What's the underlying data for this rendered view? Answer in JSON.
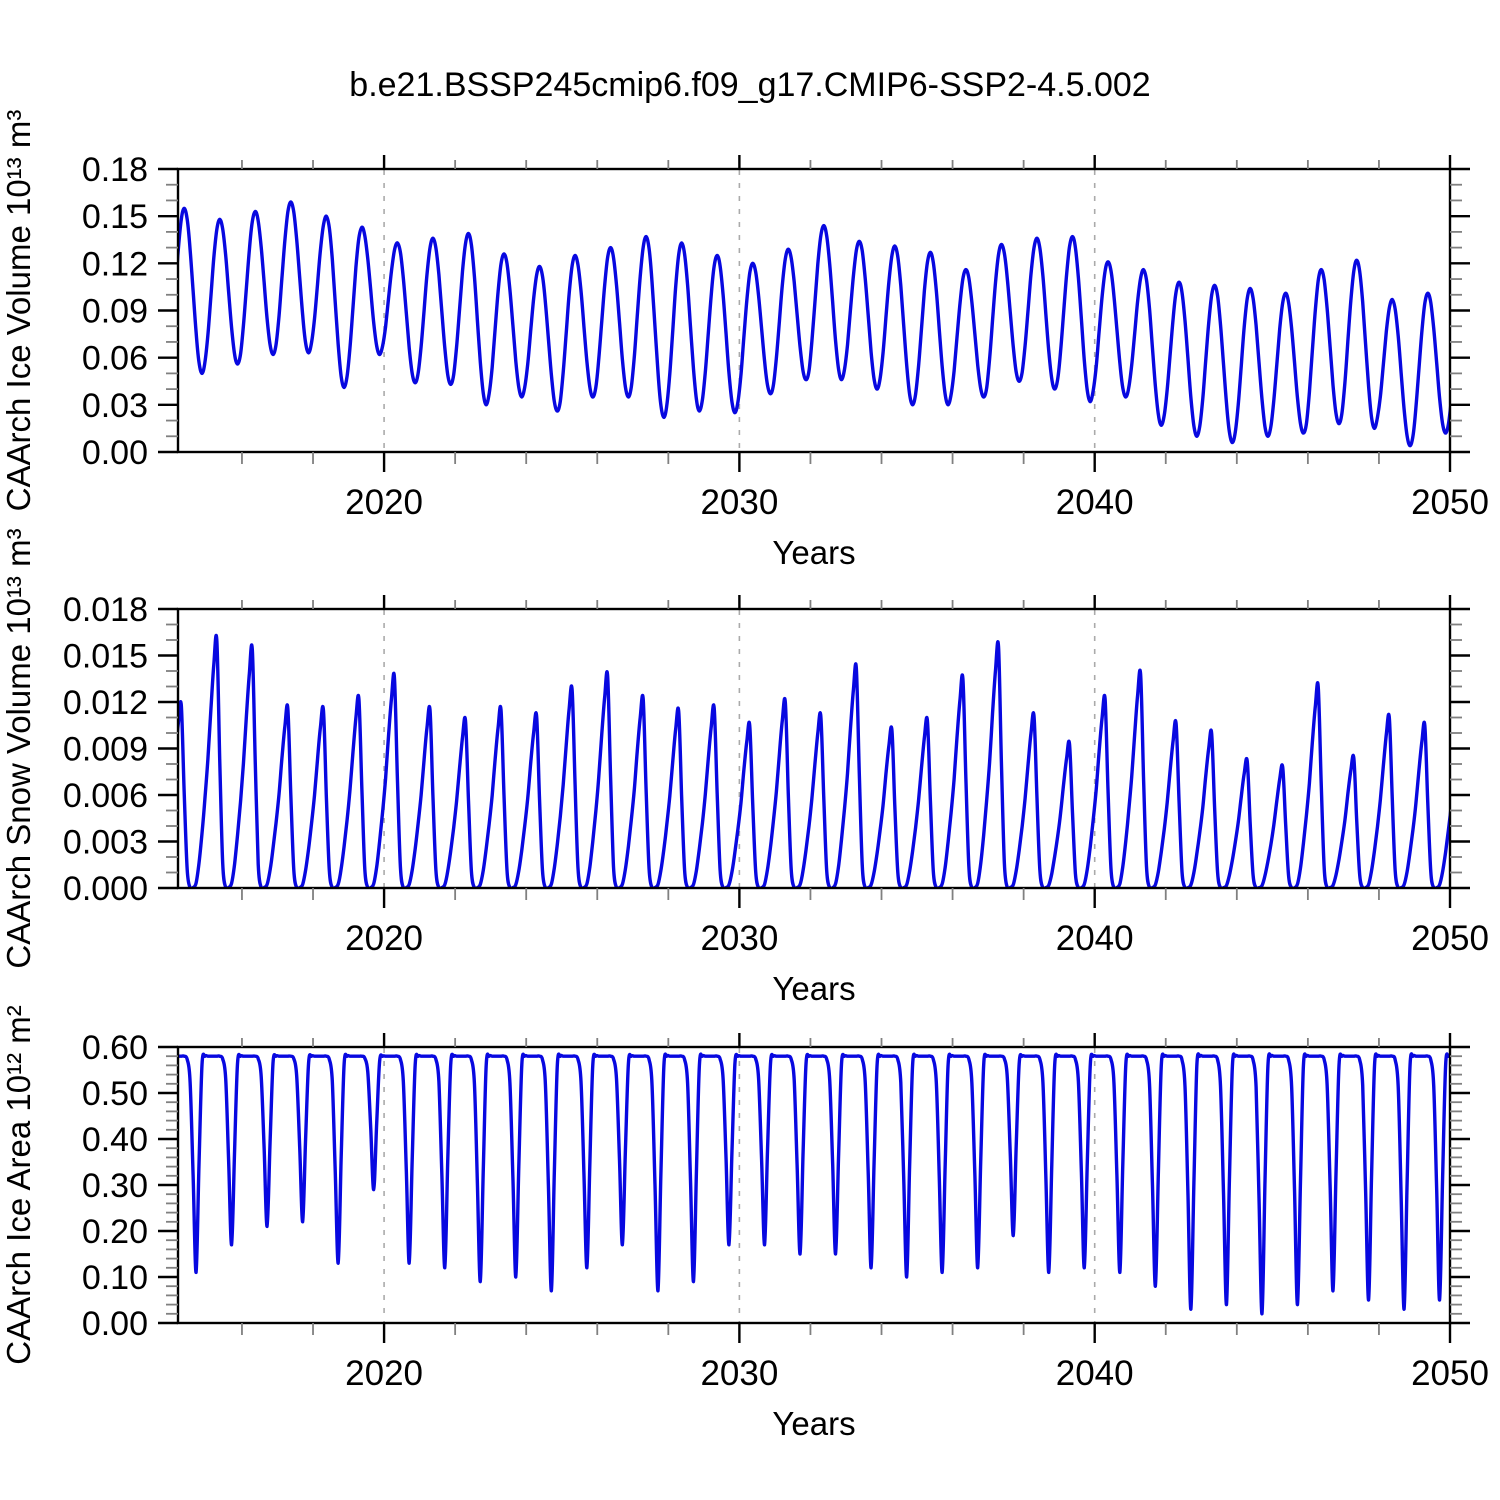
{
  "title": "b.e21.BSSP245cmip6.f09_g17.CMIP6-SSP2-4.5.002",
  "style": {
    "line_color": "#0808e0",
    "axis_color": "#000000",
    "minor_tick_color": "#808080",
    "grid_color": "#aaaaaa",
    "background": "#ffffff"
  },
  "chart_data": [
    {
      "type": "line",
      "id": "caarch-ice-volume",
      "ylabel": "CAArch Ice Volume 10¹³ m³",
      "xlabel": "Years",
      "ylim": [
        0,
        0.18
      ],
      "ytick_step": 0.03,
      "yminor_step": 0.01,
      "ydecimals": 2,
      "xlim": [
        2014.2,
        2050
      ],
      "xtick_labels": [
        2020,
        2030,
        2040,
        2050
      ],
      "xminor_step": 2,
      "gridlines": [
        2020,
        2030,
        2040
      ],
      "grid": "vertical-dashed",
      "legend": "none",
      "shape": "ice_volume",
      "note": "monthly seasonal cycle; annual spring maxima and autumn minima read from plot",
      "years": [
        2014,
        2015,
        2016,
        2017,
        2018,
        2019,
        2020,
        2021,
        2022,
        2023,
        2024,
        2025,
        2026,
        2027,
        2028,
        2029,
        2030,
        2031,
        2032,
        2033,
        2034,
        2035,
        2036,
        2037,
        2038,
        2039,
        2040,
        2041,
        2042,
        2043,
        2044,
        2045,
        2046,
        2047,
        2048,
        2049
      ],
      "annual_max": [
        0.155,
        0.148,
        0.153,
        0.159,
        0.15,
        0.143,
        0.133,
        0.136,
        0.139,
        0.126,
        0.118,
        0.125,
        0.13,
        0.137,
        0.133,
        0.125,
        0.12,
        0.129,
        0.144,
        0.134,
        0.131,
        0.127,
        0.116,
        0.132,
        0.136,
        0.137,
        0.121,
        0.116,
        0.108,
        0.106,
        0.104,
        0.101,
        0.116,
        0.122,
        0.097,
        0.101
      ],
      "annual_min": [
        0.05,
        0.056,
        0.062,
        0.063,
        0.041,
        0.062,
        0.044,
        0.043,
        0.03,
        0.035,
        0.026,
        0.035,
        0.035,
        0.022,
        0.026,
        0.025,
        0.037,
        0.046,
        0.046,
        0.04,
        0.03,
        0.03,
        0.035,
        0.045,
        0.04,
        0.032,
        0.035,
        0.017,
        0.01,
        0.006,
        0.01,
        0.012,
        0.018,
        0.015,
        0.004,
        0.012
      ]
    },
    {
      "type": "line",
      "id": "caarch-snow-volume",
      "ylabel": "CAArch Snow Volume 10¹³ m³",
      "xlabel": "Years",
      "ylim": [
        0,
        0.018
      ],
      "ytick_step": 0.003,
      "yminor_step": 0.001,
      "ydecimals": 3,
      "xlim": [
        2014.2,
        2050
      ],
      "xtick_labels": [
        2020,
        2030,
        2040,
        2050
      ],
      "xminor_step": 2,
      "gridlines": [
        2020,
        2030,
        2040
      ],
      "grid": "vertical-dashed",
      "legend": "none",
      "shape": "snow_volume",
      "note": "sharp spring peaks, zero snow volume each summer",
      "years": [
        2014,
        2015,
        2016,
        2017,
        2018,
        2019,
        2020,
        2021,
        2022,
        2023,
        2024,
        2025,
        2026,
        2027,
        2028,
        2029,
        2030,
        2031,
        2032,
        2033,
        2034,
        2035,
        2036,
        2037,
        2038,
        2039,
        2040,
        2041,
        2042,
        2043,
        2044,
        2045,
        2046,
        2047,
        2048,
        2049
      ],
      "annual_max": [
        0.0118,
        0.016,
        0.0154,
        0.0116,
        0.0115,
        0.0122,
        0.0136,
        0.0115,
        0.0108,
        0.0115,
        0.0111,
        0.0128,
        0.0137,
        0.0122,
        0.0114,
        0.0116,
        0.0105,
        0.012,
        0.0111,
        0.0142,
        0.0102,
        0.0108,
        0.0135,
        0.0156,
        0.0111,
        0.0093,
        0.0122,
        0.0138,
        0.0106,
        0.01,
        0.0082,
        0.0078,
        0.013,
        0.0084,
        0.011,
        0.0105
      ],
      "annual_min": [
        0,
        0,
        0,
        0,
        0,
        0,
        0,
        0,
        0,
        0,
        0,
        0,
        0,
        0,
        0,
        0,
        0,
        0,
        0,
        0,
        0,
        0,
        0,
        0,
        0,
        0,
        0,
        0,
        0,
        0,
        0,
        0,
        0,
        0,
        0,
        0
      ]
    },
    {
      "type": "line",
      "id": "caarch-ice-area",
      "ylabel": "CAArch Ice Area 10¹² m²",
      "xlabel": "Years",
      "ylim": [
        0,
        0.6
      ],
      "ytick_step": 0.1,
      "yminor_step": 0.02,
      "ydecimals": 2,
      "xlim": [
        2014.2,
        2050
      ],
      "xtick_labels": [
        2020,
        2030,
        2040,
        2050
      ],
      "xminor_step": 2,
      "gridlines": [
        2020,
        2030,
        2040
      ],
      "grid": "vertical-dashed",
      "legend": "none",
      "shape": "ice_area",
      "winter_plateau": 0.58,
      "note": "flat winter plateau at 0.58 with narrow September minima dips",
      "years": [
        2014,
        2015,
        2016,
        2017,
        2018,
        2019,
        2020,
        2021,
        2022,
        2023,
        2024,
        2025,
        2026,
        2027,
        2028,
        2029,
        2030,
        2031,
        2032,
        2033,
        2034,
        2035,
        2036,
        2037,
        2038,
        2039,
        2040,
        2041,
        2042,
        2043,
        2044,
        2045,
        2046,
        2047,
        2048,
        2049
      ],
      "annual_min": [
        0.11,
        0.17,
        0.21,
        0.22,
        0.13,
        0.29,
        0.13,
        0.12,
        0.09,
        0.1,
        0.07,
        0.12,
        0.17,
        0.07,
        0.09,
        0.17,
        0.17,
        0.15,
        0.15,
        0.12,
        0.1,
        0.11,
        0.12,
        0.19,
        0.11,
        0.12,
        0.11,
        0.08,
        0.03,
        0.04,
        0.02,
        0.04,
        0.07,
        0.05,
        0.03,
        0.05
      ]
    }
  ]
}
